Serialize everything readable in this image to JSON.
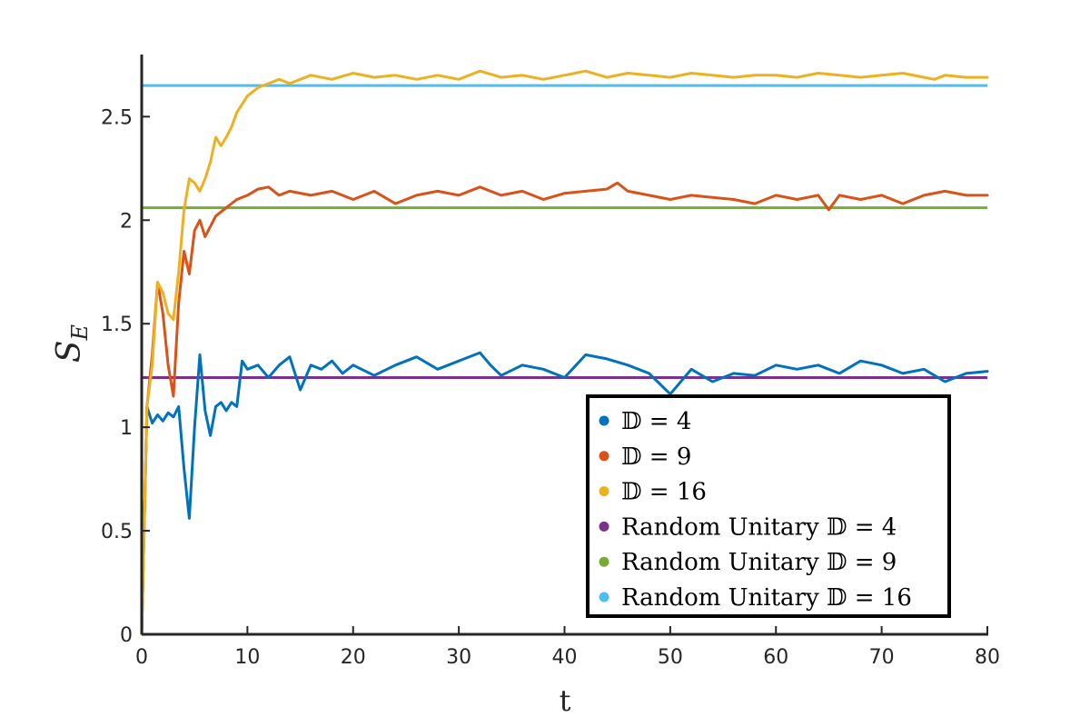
{
  "chart_data": {
    "type": "line",
    "title": "",
    "xlabel": "t",
    "ylabel_main": "S",
    "ylabel_sub": "E",
    "xlim": [
      0,
      80
    ],
    "ylim": [
      0,
      2.8
    ],
    "xticks": [
      0,
      10,
      20,
      30,
      40,
      50,
      60,
      70,
      80
    ],
    "xtick_labels": [
      "0",
      "10",
      "20",
      "30",
      "40",
      "50",
      "60",
      "70",
      "80"
    ],
    "yticks": [
      0,
      0.5,
      1,
      1.5,
      2,
      2.5
    ],
    "ytick_labels": [
      "0",
      "0.5",
      "1",
      "1.5",
      "2",
      "2.5"
    ],
    "grid": false,
    "legend_position": "bottom-right",
    "series": [
      {
        "name": "𝔻 = 4",
        "color": "#0072BD",
        "kind": "curve",
        "x": [
          0,
          0.5,
          1,
          1.5,
          2,
          2.5,
          3,
          3.5,
          4,
          4.5,
          5,
          5.5,
          6,
          6.5,
          7,
          7.5,
          8,
          8.5,
          9,
          9.5,
          10,
          11,
          12,
          13,
          14,
          15,
          16,
          17,
          18,
          19,
          20,
          22,
          24,
          26,
          28,
          30,
          32,
          33,
          34,
          36,
          38,
          40,
          42,
          44,
          46,
          48,
          50,
          52,
          54,
          56,
          58,
          60,
          62,
          64,
          66,
          68,
          70,
          72,
          74,
          76,
          78,
          80
        ],
        "y": [
          0,
          1.1,
          1.02,
          1.06,
          1.03,
          1.07,
          1.05,
          1.1,
          0.8,
          0.56,
          1.0,
          1.35,
          1.08,
          0.96,
          1.1,
          1.12,
          1.08,
          1.12,
          1.1,
          1.32,
          1.28,
          1.3,
          1.24,
          1.3,
          1.34,
          1.18,
          1.3,
          1.28,
          1.32,
          1.26,
          1.3,
          1.25,
          1.3,
          1.34,
          1.28,
          1.32,
          1.36,
          1.3,
          1.25,
          1.3,
          1.28,
          1.24,
          1.35,
          1.33,
          1.3,
          1.26,
          1.16,
          1.28,
          1.22,
          1.26,
          1.25,
          1.3,
          1.28,
          1.3,
          1.26,
          1.32,
          1.3,
          1.26,
          1.28,
          1.22,
          1.26,
          1.27
        ]
      },
      {
        "name": "𝔻 = 9",
        "color": "#D95319",
        "kind": "curve",
        "x": [
          0,
          0.5,
          1,
          1.5,
          2,
          2.5,
          3,
          3.5,
          4,
          4.5,
          5,
          5.5,
          6,
          7,
          8,
          9,
          10,
          11,
          12,
          13,
          14,
          16,
          18,
          20,
          22,
          24,
          26,
          28,
          30,
          32,
          34,
          36,
          38,
          40,
          42,
          44,
          45,
          46,
          48,
          50,
          52,
          54,
          56,
          58,
          60,
          62,
          64,
          65,
          66,
          68,
          70,
          72,
          74,
          76,
          78,
          80
        ],
        "y": [
          0,
          1.1,
          1.35,
          1.7,
          1.55,
          1.3,
          1.15,
          1.6,
          1.85,
          1.74,
          1.95,
          2.0,
          1.92,
          2.02,
          2.06,
          2.1,
          2.12,
          2.15,
          2.16,
          2.12,
          2.14,
          2.12,
          2.14,
          2.1,
          2.14,
          2.08,
          2.12,
          2.14,
          2.12,
          2.16,
          2.12,
          2.14,
          2.1,
          2.13,
          2.14,
          2.15,
          2.18,
          2.14,
          2.12,
          2.1,
          2.12,
          2.11,
          2.1,
          2.08,
          2.12,
          2.1,
          2.12,
          2.05,
          2.12,
          2.1,
          2.12,
          2.08,
          2.12,
          2.14,
          2.12,
          2.12
        ]
      },
      {
        "name": "𝔻 = 16",
        "color": "#EDB120",
        "kind": "curve",
        "x": [
          0,
          0.5,
          1,
          1.5,
          2,
          2.5,
          3,
          3.5,
          4,
          4.5,
          5,
          5.5,
          6,
          6.5,
          7,
          7.5,
          8,
          8.5,
          9,
          10,
          11,
          12,
          13,
          14,
          16,
          18,
          20,
          22,
          24,
          26,
          28,
          30,
          32,
          34,
          36,
          38,
          40,
          42,
          44,
          46,
          48,
          50,
          52,
          54,
          56,
          58,
          60,
          62,
          64,
          66,
          68,
          70,
          72,
          74,
          75,
          76,
          78,
          80
        ],
        "y": [
          0,
          1.1,
          1.3,
          1.7,
          1.65,
          1.55,
          1.52,
          1.75,
          2.05,
          2.2,
          2.18,
          2.14,
          2.2,
          2.28,
          2.4,
          2.36,
          2.4,
          2.45,
          2.52,
          2.6,
          2.64,
          2.66,
          2.68,
          2.66,
          2.7,
          2.68,
          2.71,
          2.69,
          2.7,
          2.68,
          2.7,
          2.68,
          2.72,
          2.69,
          2.7,
          2.68,
          2.7,
          2.72,
          2.69,
          2.71,
          2.7,
          2.69,
          2.71,
          2.7,
          2.69,
          2.7,
          2.7,
          2.69,
          2.71,
          2.7,
          2.69,
          2.7,
          2.71,
          2.69,
          2.68,
          2.7,
          2.69,
          2.69
        ]
      },
      {
        "name": "Random Unitary 𝔻 = 4",
        "color": "#7E2F8E",
        "kind": "hline",
        "value": 1.24
      },
      {
        "name": "Random Unitary 𝔻 = 9",
        "color": "#77AC30",
        "kind": "hline",
        "value": 2.06
      },
      {
        "name": "Random Unitary 𝔻 = 16",
        "color": "#4DBEEE",
        "kind": "hline",
        "value": 2.65
      }
    ]
  }
}
